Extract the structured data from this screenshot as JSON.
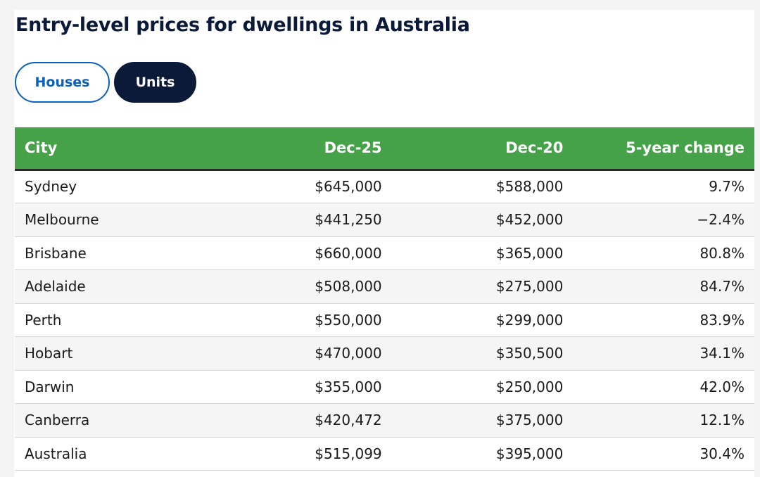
{
  "title": "Entry-level prices for dwellings in Australia",
  "toggle": {
    "houses_label": "Houses",
    "units_label": "Units",
    "selected": "Units"
  },
  "colors": {
    "header_green": "#45a248",
    "navy": "#0b1a38",
    "link_blue": "#0a60c0"
  },
  "table": {
    "headers": [
      "City",
      "Dec-25",
      "Dec-20",
      "5-year change"
    ],
    "rows": [
      [
        "Sydney",
        "$645,000",
        "$588,000",
        "9.7%"
      ],
      [
        "Melbourne",
        "$441,250",
        "$452,000",
        "−2.4%"
      ],
      [
        "Brisbane",
        "$660,000",
        "$365,000",
        "80.8%"
      ],
      [
        "Adelaide",
        "$508,000",
        "$275,000",
        "84.7%"
      ],
      [
        "Perth",
        "$550,000",
        "$299,000",
        "83.9%"
      ],
      [
        "Hobart",
        "$470,000",
        "$350,500",
        "34.1%"
      ],
      [
        "Darwin",
        "$355,000",
        "$250,000",
        "42.0%"
      ],
      [
        "Canberra",
        "$420,472",
        "$375,000",
        "12.1%"
      ],
      [
        "Australia",
        "$515,099",
        "$395,000",
        "30.4%"
      ]
    ]
  }
}
